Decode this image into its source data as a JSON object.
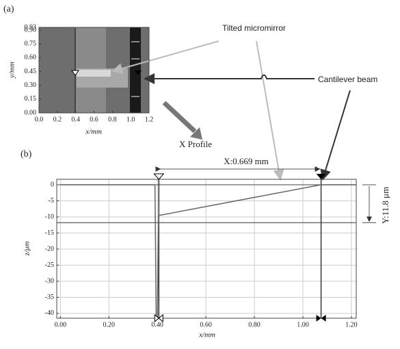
{
  "chart_data": [
    {
      "type": "image",
      "panel_label": "(a)",
      "xlabel": "x/mm",
      "ylabel": "y/mm",
      "xlim": [
        0,
        1.2
      ],
      "xticks": [
        {
          "value": 0,
          "label": "0.0"
        },
        0.2,
        0.4,
        0.6,
        0.8,
        {
          "value": 1,
          "label": "1.0"
        },
        1.2
      ],
      "ylim": [
        0,
        0.93
      ],
      "yticks": [
        {
          "value": 0,
          "label": "0.00"
        },
        0.15,
        {
          "value": 0.3,
          "label": "0.30"
        },
        0.45,
        {
          "value": 0.6,
          "label": "0.60"
        },
        0.75,
        {
          "value": 0.9,
          "label": "0.90"
        },
        0.93
      ],
      "annotations": [
        "Tilted micromirror",
        "Cantilever beam",
        "X Profile"
      ]
    },
    {
      "type": "line",
      "panel_label": "(b)",
      "xlabel": "x/mm",
      "ylabel": "z/μm",
      "xlim": [
        -0.015,
        1.22
      ],
      "xticks": [
        {
          "value": 0,
          "label": "0.00"
        },
        {
          "value": 0.2,
          "label": "0.20"
        },
        {
          "value": 0.4,
          "label": "0.40"
        },
        {
          "value": 0.6,
          "label": "0.60"
        },
        {
          "value": 0.8,
          "label": "0.80"
        },
        {
          "value": 1,
          "label": "1.00"
        },
        {
          "value": 1.2,
          "label": "1.20"
        }
      ],
      "ylim": [
        -41.5,
        1.7
      ],
      "yticks": [
        0,
        -5,
        -10,
        -15,
        -20,
        -25,
        -30,
        -35,
        -40
      ],
      "grid": true,
      "x": [
        0,
        0.39,
        0.395,
        0.4,
        0.405,
        0.41,
        1.075,
        1.22
      ],
      "series": [
        {
          "color": "#666666",
          "values": [
            0,
            0,
            -41,
            -41,
            -9.6,
            -9.5,
            0,
            0
          ]
        }
      ],
      "cursors_x": [
        0.406,
        1.075
      ],
      "cursors_y": [
        0,
        -11.8
      ],
      "annotations": [
        "X:0.669 mm",
        "Y:11.8 μm"
      ]
    }
  ]
}
